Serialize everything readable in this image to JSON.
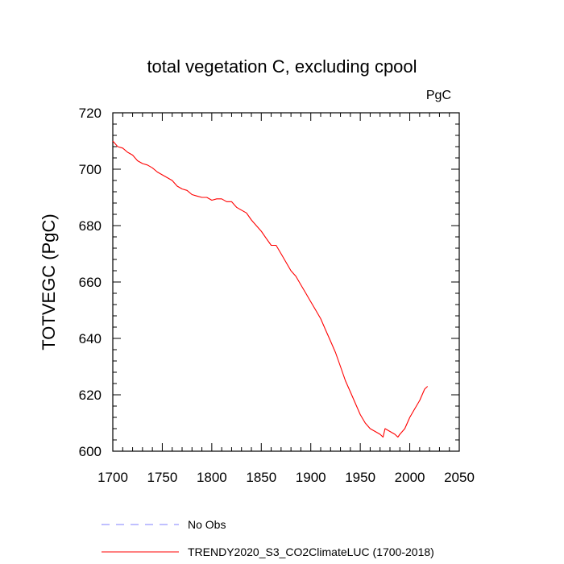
{
  "chart_data": {
    "type": "line",
    "title": "total vegetation C, excluding cpool",
    "units": "PgC",
    "xlabel": "",
    "ylabel": "TOTVEGC  (PgC)",
    "xlim": [
      1700,
      2050
    ],
    "ylim": [
      600,
      720
    ],
    "xticks": [
      1700,
      1750,
      1800,
      1850,
      1900,
      1950,
      2000,
      2050
    ],
    "yticks": [
      600,
      620,
      640,
      660,
      680,
      700,
      720
    ],
    "grid": false,
    "legend_position": "bottom-left",
    "series": [
      {
        "name": "No Obs",
        "color": "#8080ff",
        "style": "dashed",
        "x": [],
        "y": []
      },
      {
        "name": "TRENDY2020_S3_CO2ClimateLUC (1700-2018)",
        "color": "#ff0000",
        "style": "solid",
        "x": [
          1700,
          1705,
          1710,
          1715,
          1720,
          1725,
          1730,
          1735,
          1740,
          1745,
          1750,
          1755,
          1760,
          1765,
          1770,
          1775,
          1780,
          1785,
          1790,
          1795,
          1800,
          1805,
          1810,
          1815,
          1820,
          1825,
          1830,
          1835,
          1840,
          1845,
          1850,
          1855,
          1860,
          1865,
          1870,
          1875,
          1880,
          1885,
          1890,
          1895,
          1900,
          1905,
          1910,
          1915,
          1920,
          1925,
          1930,
          1935,
          1940,
          1945,
          1950,
          1955,
          1960,
          1965,
          1970,
          1973,
          1975,
          1980,
          1985,
          1988,
          1990,
          1995,
          2000,
          2005,
          2010,
          2015,
          2018
        ],
        "y": [
          710,
          708,
          707.5,
          706,
          705,
          703,
          702,
          701.5,
          700.5,
          699,
          698,
          697,
          696,
          694,
          693,
          692.5,
          691,
          690.5,
          690,
          690,
          689,
          689.5,
          689.5,
          688.5,
          688.5,
          686.5,
          685.5,
          684.5,
          682,
          680,
          678,
          675.5,
          673,
          673,
          670,
          667,
          664,
          662,
          659,
          656,
          653,
          650,
          647,
          643,
          639,
          635,
          630,
          625,
          621,
          617,
          613,
          610,
          608,
          607,
          606,
          605,
          608,
          607,
          606,
          605,
          606,
          608,
          612,
          615,
          618,
          622,
          623
        ]
      }
    ]
  }
}
